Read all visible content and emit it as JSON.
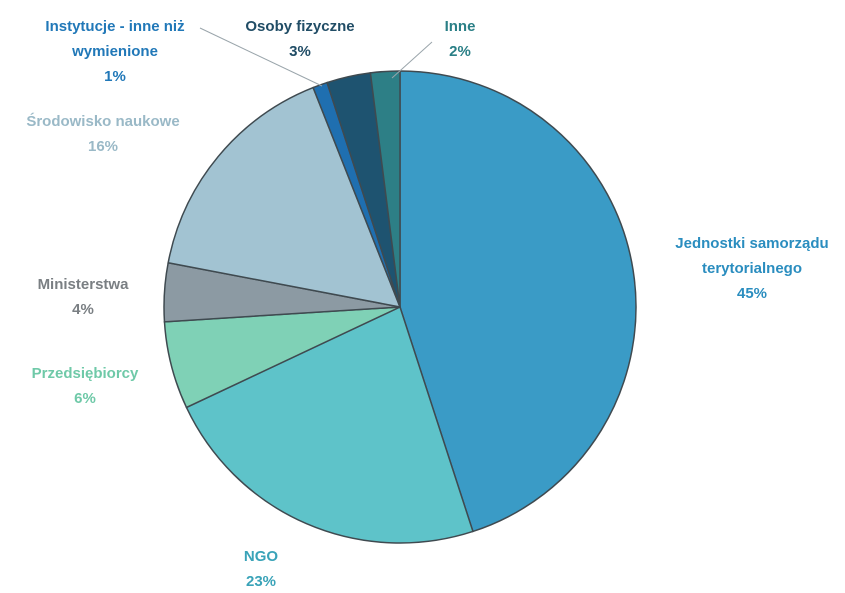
{
  "chart_data": {
    "type": "pie",
    "title": "",
    "slices": [
      {
        "label_lines": [
          "Jednostki samorządu",
          "terytorialnego"
        ],
        "pct_label": "45%",
        "value": 45,
        "color": "#3a9bc6"
      },
      {
        "label_lines": [
          "NGO"
        ],
        "pct_label": "23%",
        "value": 23,
        "color": "#5ec3c9"
      },
      {
        "label_lines": [
          "Przedsiębiorcy"
        ],
        "pct_label": "6%",
        "value": 6,
        "color": "#7fd1b6"
      },
      {
        "label_lines": [
          "Ministerstwa"
        ],
        "pct_label": "4%",
        "value": 4,
        "color": "#8c9aa3"
      },
      {
        "label_lines": [
          "Środowisko naukowe"
        ],
        "pct_label": "16%",
        "value": 16,
        "color": "#a2c3d2"
      },
      {
        "label_lines": [
          "Instytucje - inne niż",
          "wymienione"
        ],
        "pct_label": "1%",
        "value": 1,
        "color": "#1f6fb0"
      },
      {
        "label_lines": [
          "Osoby fizyczne"
        ],
        "pct_label": "3%",
        "value": 3,
        "color": "#1e5370"
      },
      {
        "label_lines": [
          "Inne"
        ],
        "pct_label": "2%",
        "value": 2,
        "color": "#2d7f86"
      }
    ],
    "label_colors": [
      "#2a8dbf",
      "#3aa3b8",
      "#6fc9a8",
      "#7a7f83",
      "#9ab9c7",
      "#2178b8",
      "#214d66",
      "#2a7f86"
    ]
  }
}
